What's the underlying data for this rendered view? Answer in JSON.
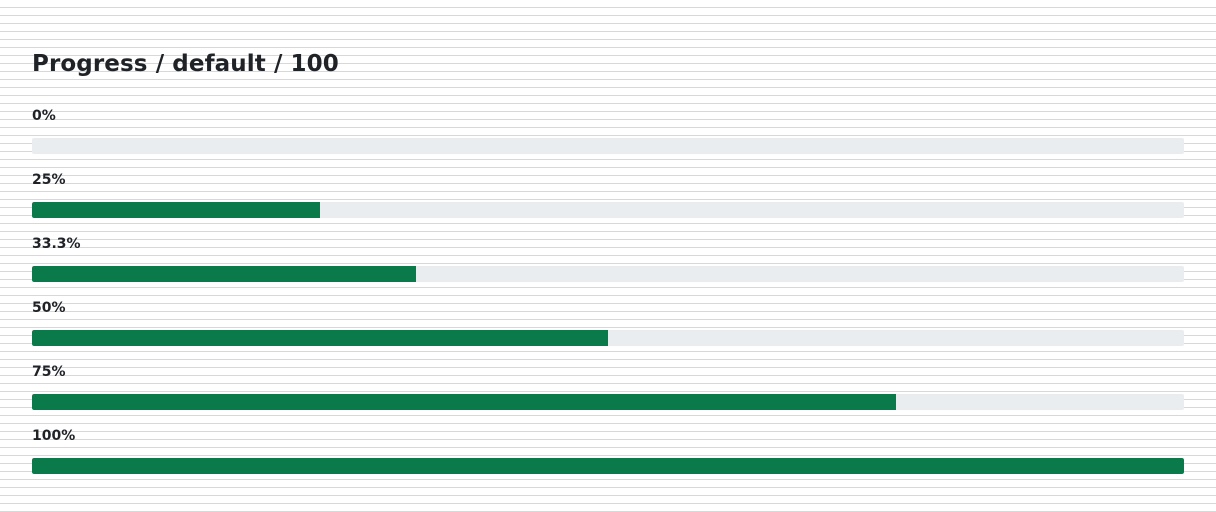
{
  "header": {
    "title": "Progress / default / 100"
  },
  "colors": {
    "fill": "#0b7a4b",
    "track": "#eaedf0"
  },
  "progress_bars": [
    {
      "label": "0%",
      "value_percent": 0
    },
    {
      "label": "25%",
      "value_percent": 25
    },
    {
      "label": "33.3%",
      "value_percent": 33.3
    },
    {
      "label": "50%",
      "value_percent": 50
    },
    {
      "label": "75%",
      "value_percent": 75
    },
    {
      "label": "100%",
      "value_percent": 100
    }
  ]
}
